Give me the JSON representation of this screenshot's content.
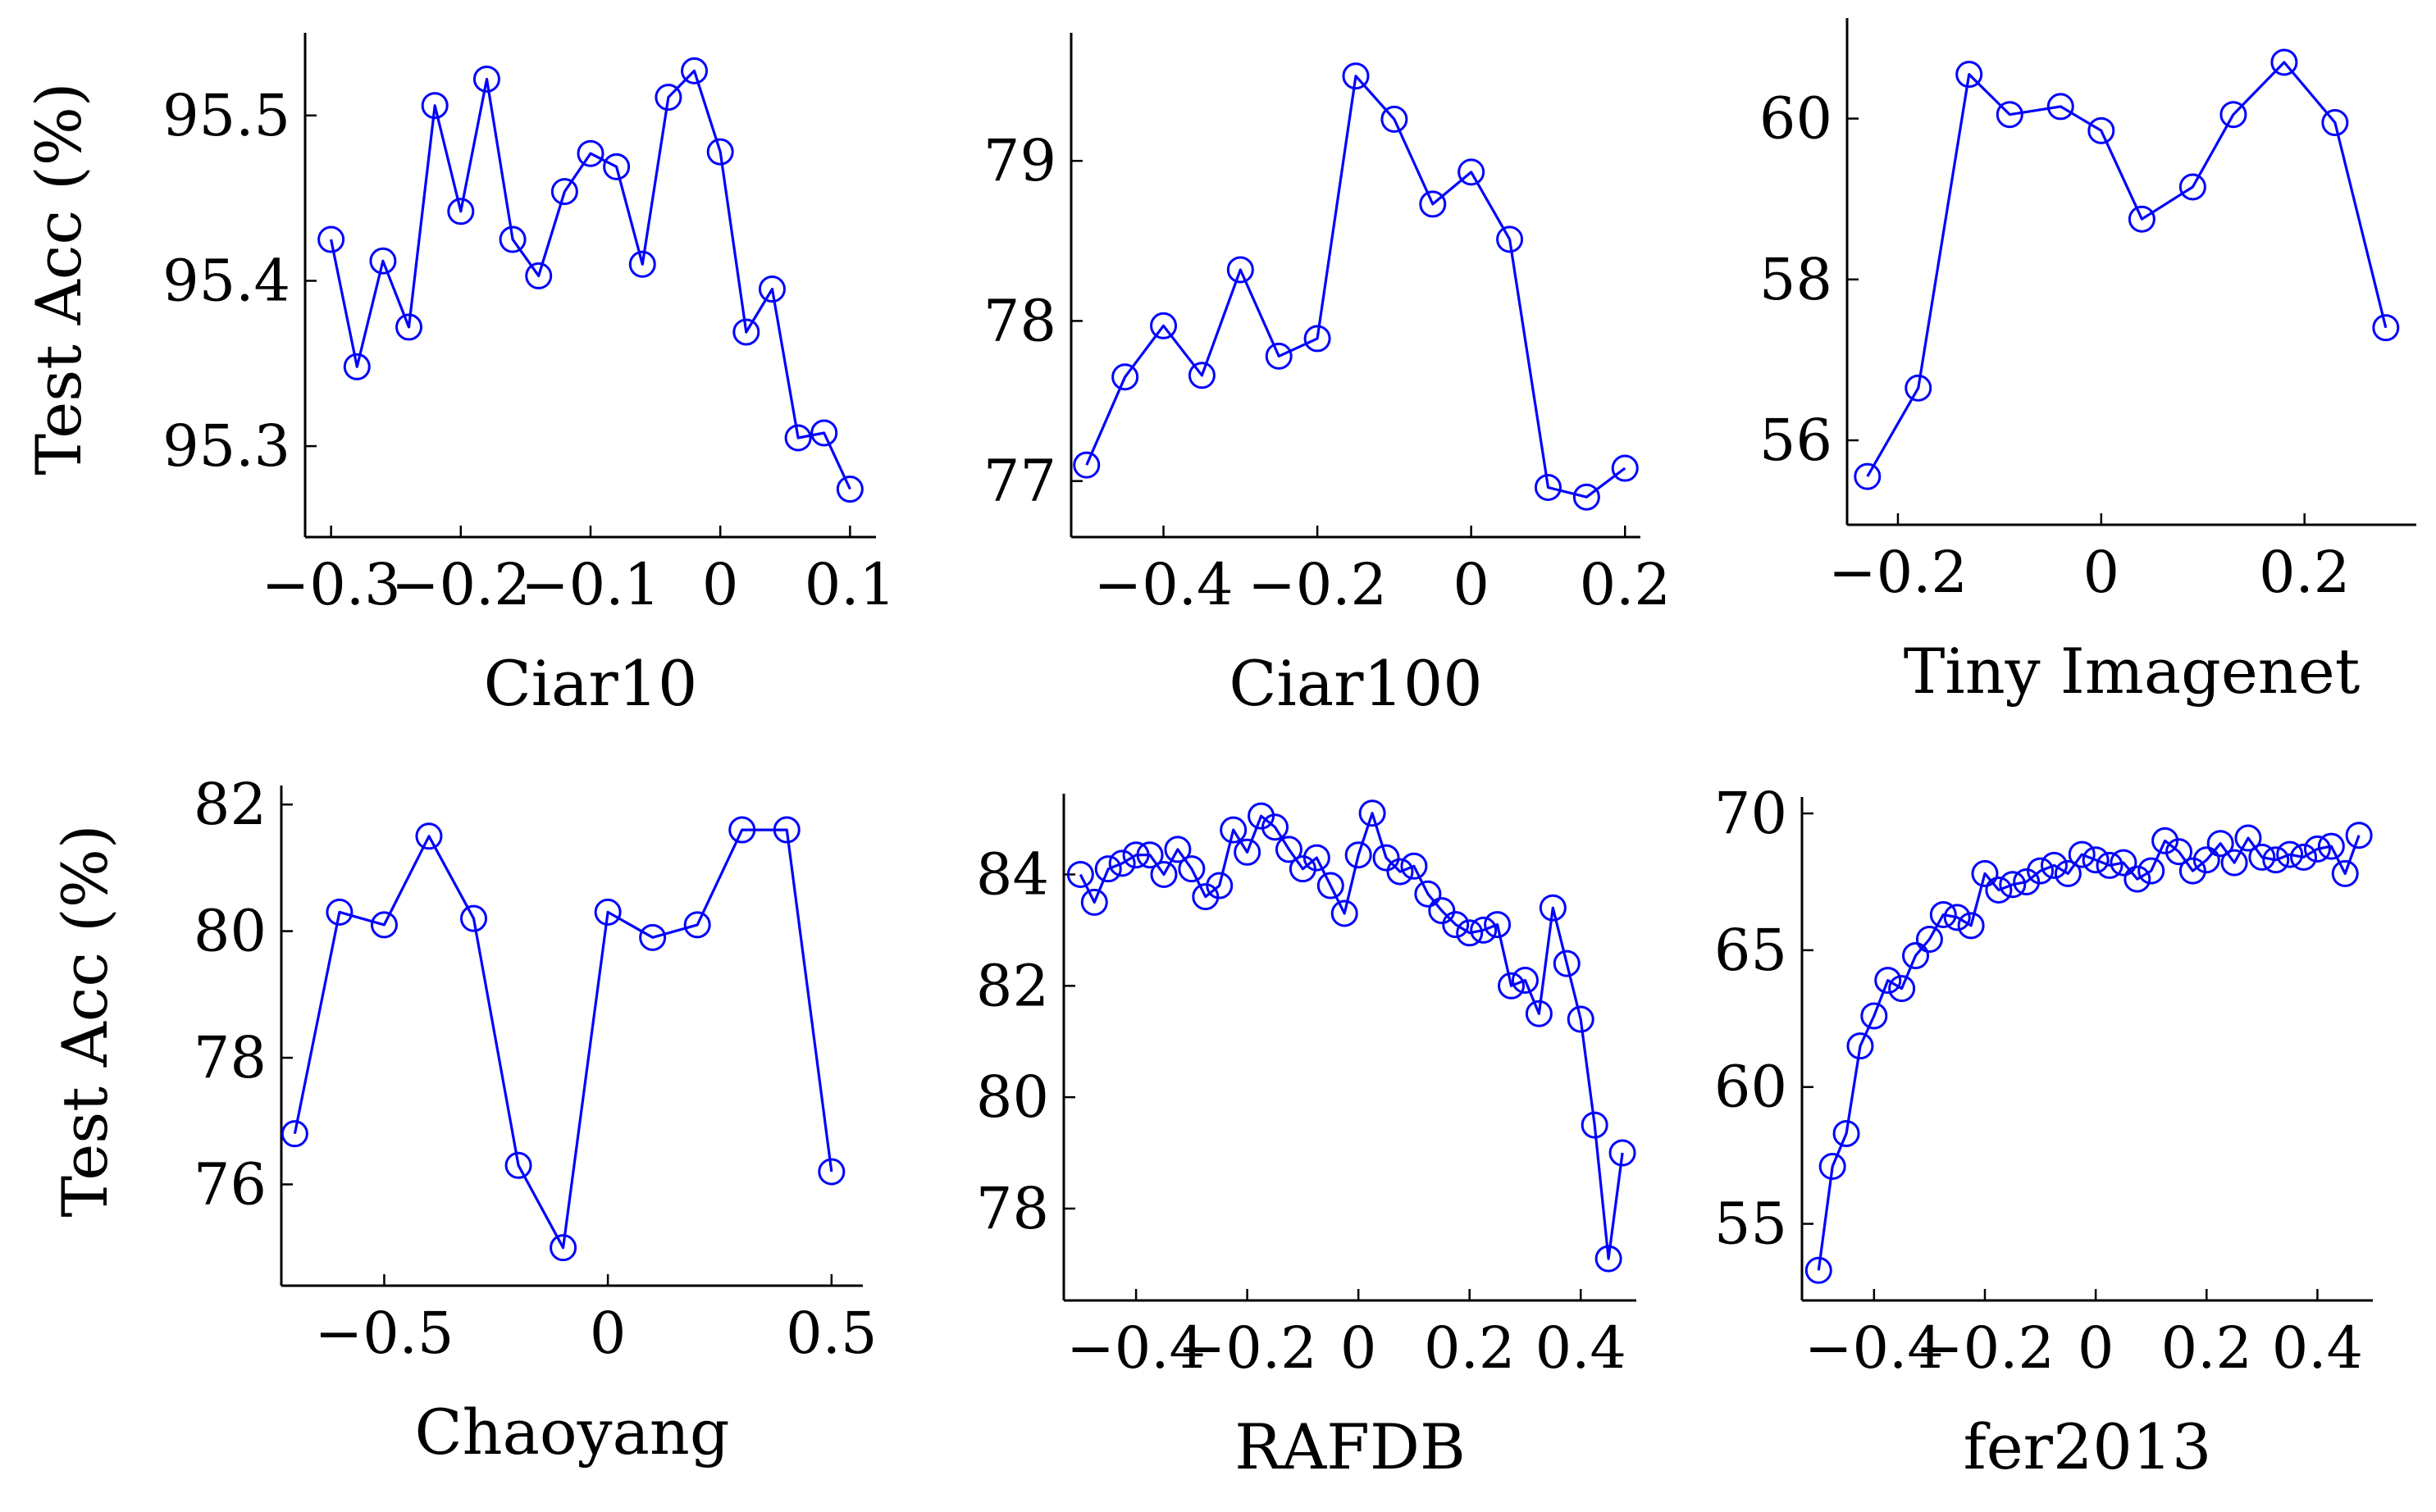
{
  "figure": {
    "ylabel": "Test Acc (%)",
    "line_color": "#0000ff",
    "axis_color": "#000000"
  },
  "chart_data": [
    {
      "type": "line",
      "xlabel": "Ciar10",
      "ylabel": "Test Acc (%)",
      "xlim": [
        -0.32,
        0.12
      ],
      "ylim": [
        95.245,
        95.55
      ],
      "xticks": [
        -0.3,
        -0.2,
        -0.1,
        0,
        0.1
      ],
      "xtick_labels": [
        "−0.3",
        "−0.2",
        "−0.1",
        "0",
        "0.1"
      ],
      "yticks": [
        95.3,
        95.4,
        95.5
      ],
      "ytick_labels": [
        "95.3",
        "95.4",
        "95.5"
      ],
      "series": [
        {
          "x": [
            -0.3,
            -0.28,
            -0.26,
            -0.24,
            -0.22,
            -0.2,
            -0.18,
            -0.16,
            -0.14,
            -0.12,
            -0.1,
            -0.08,
            -0.06,
            -0.04,
            -0.02,
            0,
            0.02,
            0.04,
            0.06,
            0.08,
            0.1
          ],
          "y": [
            95.425,
            95.348,
            95.412,
            95.372,
            95.506,
            95.442,
            95.522,
            95.425,
            95.403,
            95.454,
            95.477,
            95.469,
            95.41,
            95.511,
            95.527,
            95.478,
            95.369,
            95.395,
            95.305,
            95.308,
            95.274
          ]
        }
      ]
    },
    {
      "type": "line",
      "xlabel": "Ciar100",
      "ylabel": "",
      "xlim": [
        -0.52,
        0.22
      ],
      "ylim": [
        76.65,
        79.8
      ],
      "xticks": [
        -0.4,
        -0.2,
        0,
        0.2
      ],
      "xtick_labels": [
        "−0.4",
        "−0.2",
        "0",
        "0.2"
      ],
      "yticks": [
        77,
        78,
        79
      ],
      "ytick_labels": [
        "77",
        "78",
        "79"
      ],
      "series": [
        {
          "x": [
            -0.5,
            -0.45,
            -0.4,
            -0.35,
            -0.3,
            -0.25,
            -0.2,
            -0.15,
            -0.1,
            -0.05,
            0,
            0.05,
            0.1,
            0.15,
            0.2
          ],
          "y": [
            77.1,
            77.65,
            77.97,
            77.66,
            78.32,
            77.78,
            77.89,
            79.53,
            79.26,
            78.73,
            78.93,
            78.51,
            76.96,
            76.9,
            77.08
          ]
        }
      ]
    },
    {
      "type": "line",
      "xlabel": "Tiny Imagenet",
      "ylabel": "",
      "xlim": [
        -0.25,
        0.31
      ],
      "ylim": [
        54.95,
        61.25
      ],
      "xticks": [
        -0.2,
        0,
        0.2
      ],
      "xtick_labels": [
        "−0.2",
        "0",
        "0.2"
      ],
      "yticks": [
        56,
        58,
        60
      ],
      "ytick_labels": [
        "56",
        "58",
        "60"
      ],
      "series": [
        {
          "x": [
            -0.23,
            -0.18,
            -0.13,
            -0.09,
            -0.04,
            0,
            0.04,
            0.09,
            0.13,
            0.18,
            0.23,
            0.28
          ],
          "y": [
            55.55,
            56.65,
            60.55,
            60.05,
            60.15,
            59.85,
            58.75,
            59.15,
            60.05,
            60.7,
            59.95,
            57.4
          ]
        }
      ]
    },
    {
      "type": "line",
      "xlabel": "Chaoyang",
      "ylabel": "Test Acc (%)",
      "xlim": [
        -0.73,
        0.57
      ],
      "ylim": [
        74.4,
        82.3
      ],
      "xticks": [
        -0.5,
        0,
        0.5
      ],
      "xtick_labels": [
        "−0.5",
        "0",
        "0.5"
      ],
      "yticks": [
        76,
        78,
        80,
        82
      ],
      "ytick_labels": [
        "76",
        "78",
        "80",
        "82"
      ],
      "series": [
        {
          "x": [
            -0.7,
            -0.6,
            -0.5,
            -0.4,
            -0.3,
            -0.2,
            -0.1,
            0,
            0.1,
            0.2,
            0.3,
            0.4,
            0.5
          ],
          "y": [
            76.8,
            80.3,
            80.1,
            81.5,
            80.2,
            76.3,
            75.0,
            80.3,
            79.9,
            80.1,
            81.6,
            81.6,
            76.2
          ]
        }
      ]
    },
    {
      "type": "line",
      "xlabel": "RAFDB",
      "ylabel": "",
      "xlim": [
        -0.53,
        0.5
      ],
      "ylim": [
        76.35,
        85.45
      ],
      "xticks": [
        -0.4,
        -0.2,
        0,
        0.2,
        0.4
      ],
      "xtick_labels": [
        "−0.4",
        "−0.2",
        "0",
        "0.2",
        "0.4"
      ],
      "yticks": [
        78,
        80,
        82,
        84
      ],
      "ytick_labels": [
        "78",
        "80",
        "82",
        "84"
      ],
      "series": [
        {
          "x": [
            -0.5,
            -0.475,
            -0.45,
            -0.425,
            -0.4,
            -0.375,
            -0.35,
            -0.325,
            -0.3,
            -0.275,
            -0.25,
            -0.225,
            -0.2,
            -0.175,
            -0.15,
            -0.125,
            -0.1,
            -0.075,
            -0.05,
            -0.025,
            0,
            0.025,
            0.05,
            0.075,
            0.1,
            0.125,
            0.15,
            0.175,
            0.2,
            0.225,
            0.25,
            0.275,
            0.3,
            0.325,
            0.35,
            0.375,
            0.4,
            0.425,
            0.45,
            0.475
          ],
          "y": [
            84.0,
            83.5,
            84.1,
            84.2,
            84.35,
            84.35,
            84.0,
            84.45,
            84.1,
            83.6,
            83.8,
            84.8,
            84.4,
            85.05,
            84.85,
            84.45,
            84.1,
            84.3,
            83.8,
            83.3,
            84.35,
            85.1,
            84.3,
            84.05,
            84.15,
            83.65,
            83.35,
            83.1,
            82.95,
            83.0,
            83.1,
            82.0,
            82.1,
            81.5,
            83.4,
            82.4,
            81.4,
            79.5,
            77.1,
            79.0
          ]
        }
      ]
    },
    {
      "type": "line",
      "xlabel": "fer2013",
      "ylabel": "",
      "xlim": [
        -0.53,
        0.5
      ],
      "ylim": [
        52.2,
        70.6
      ],
      "xticks": [
        -0.4,
        -0.2,
        0,
        0.2,
        0.4
      ],
      "xtick_labels": [
        "−0.4",
        "−0.2",
        "0",
        "0.2",
        "0.4"
      ],
      "yticks": [
        55,
        60,
        65,
        70
      ],
      "ytick_labels": [
        "55",
        "60",
        "65",
        "70"
      ],
      "series": [
        {
          "x": [
            -0.5,
            -0.475,
            -0.45,
            -0.425,
            -0.4,
            -0.375,
            -0.35,
            -0.325,
            -0.3,
            -0.275,
            -0.25,
            -0.225,
            -0.2,
            -0.175,
            -0.15,
            -0.125,
            -0.1,
            -0.075,
            -0.05,
            -0.025,
            0,
            0.025,
            0.05,
            0.075,
            0.1,
            0.125,
            0.15,
            0.175,
            0.2,
            0.225,
            0.25,
            0.275,
            0.3,
            0.325,
            0.35,
            0.375,
            0.4,
            0.425,
            0.45,
            0.475
          ],
          "y": [
            53.3,
            57.1,
            58.3,
            61.5,
            62.6,
            63.9,
            63.6,
            64.8,
            65.4,
            66.3,
            66.2,
            65.9,
            67.8,
            67.2,
            67.4,
            67.5,
            67.9,
            68.1,
            67.8,
            68.5,
            68.3,
            68.1,
            68.2,
            67.6,
            67.9,
            69.0,
            68.6,
            67.9,
            68.3,
            68.9,
            68.2,
            69.1,
            68.4,
            68.3,
            68.5,
            68.4,
            68.7,
            68.8,
            67.8,
            69.2
          ]
        }
      ]
    }
  ]
}
